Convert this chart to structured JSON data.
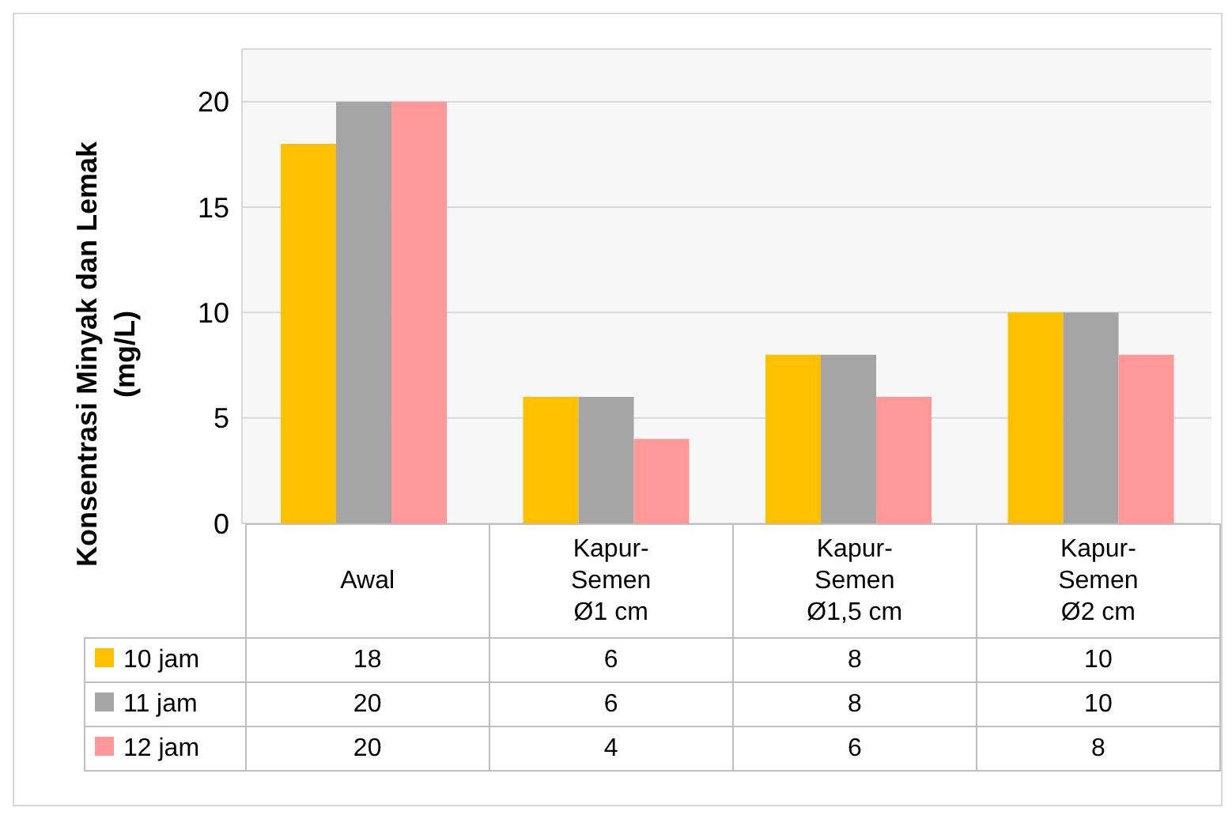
{
  "chart_data": {
    "type": "bar",
    "ylabel": "Konsentrasi Minyak dan Lemak (mg/L)",
    "categories": [
      "Awal",
      "Kapur-Semen Ø1 cm",
      "Kapur-Semen Ø1,5 cm",
      "Kapur-Semen Ø2 cm"
    ],
    "series": [
      {
        "name": "10 jam",
        "color": "#ffc000",
        "values": [
          18,
          6,
          8,
          10
        ]
      },
      {
        "name": "11 jam",
        "color": "#a5a5a5",
        "values": [
          20,
          6,
          8,
          10
        ]
      },
      {
        "name": "12 jam",
        "color": "#ff9999",
        "values": [
          20,
          4,
          6,
          8
        ]
      }
    ],
    "ylim": [
      0,
      22.5
    ],
    "yticks": [
      0,
      5,
      10,
      15,
      20
    ],
    "grid": "y",
    "legend": "bottom",
    "data_labels": true
  }
}
